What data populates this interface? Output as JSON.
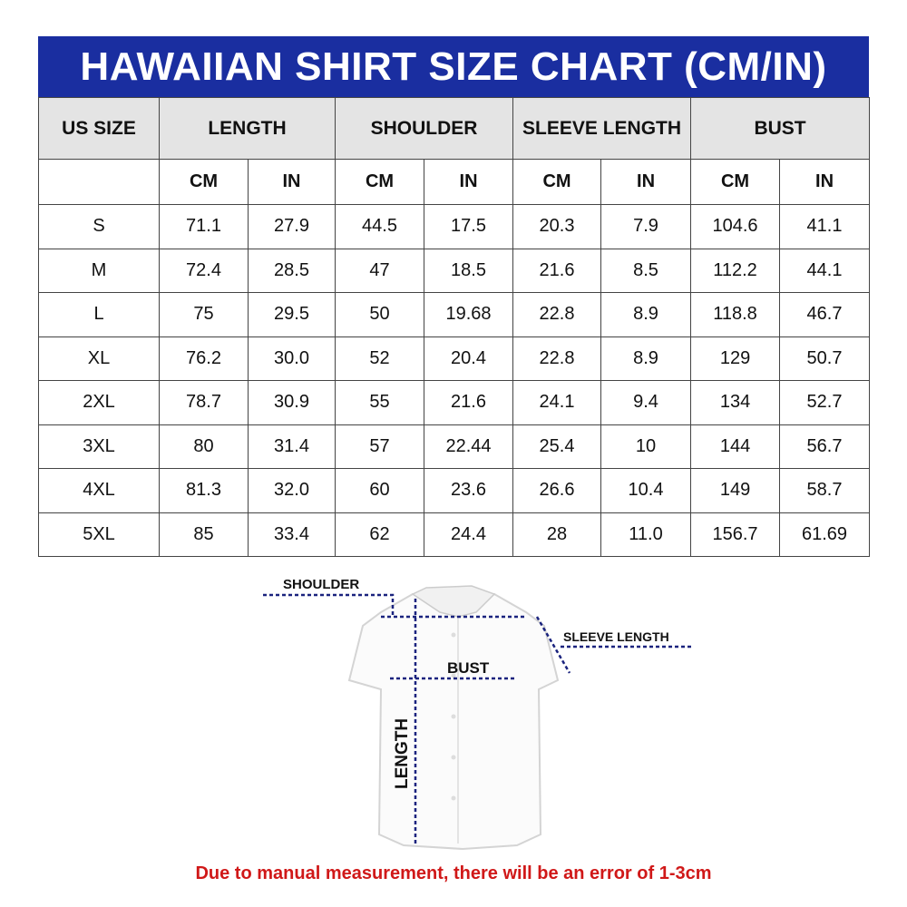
{
  "title": "HAWAIIAN SHIRT SIZE CHART (CM/IN)",
  "table": {
    "size_header": "US SIZE",
    "groups": [
      "LENGTH",
      "SHOULDER",
      "SLEEVE LENGTH",
      "BUST"
    ],
    "units": [
      "CM",
      "IN",
      "CM",
      "IN",
      "CM",
      "IN",
      "CM",
      "IN"
    ],
    "rows": [
      [
        "S",
        "71.1",
        "27.9",
        "44.5",
        "17.5",
        "20.3",
        "7.9",
        "104.6",
        "41.1"
      ],
      [
        "M",
        "72.4",
        "28.5",
        "47",
        "18.5",
        "21.6",
        "8.5",
        "112.2",
        "44.1"
      ],
      [
        "L",
        "75",
        "29.5",
        "50",
        "19.68",
        "22.8",
        "8.9",
        "118.8",
        "46.7"
      ],
      [
        "XL",
        "76.2",
        "30.0",
        "52",
        "20.4",
        "22.8",
        "8.9",
        "129",
        "50.7"
      ],
      [
        "2XL",
        "78.7",
        "30.9",
        "55",
        "21.6",
        "24.1",
        "9.4",
        "134",
        "52.7"
      ],
      [
        "3XL",
        "80",
        "31.4",
        "57",
        "22.44",
        "25.4",
        "10",
        "144",
        "56.7"
      ],
      [
        "4XL",
        "81.3",
        "32.0",
        "60",
        "23.6",
        "26.6",
        "10.4",
        "149",
        "58.7"
      ],
      [
        "5XL",
        "85",
        "33.4",
        "62",
        "24.4",
        "28",
        "11.0",
        "156.7",
        "61.69"
      ]
    ]
  },
  "diagram": {
    "shoulder": "SHOULDER",
    "sleeve_length": "SLEEVE LENGTH",
    "bust": "BUST",
    "length": "LENGTH"
  },
  "note": "Due to manual measurement, there will be an error of 1-3cm",
  "colors": {
    "title_bg": "#1a2ea0",
    "header_bg": "#e4e4e4",
    "note": "#d01818",
    "measure_line": "#1a237e"
  }
}
